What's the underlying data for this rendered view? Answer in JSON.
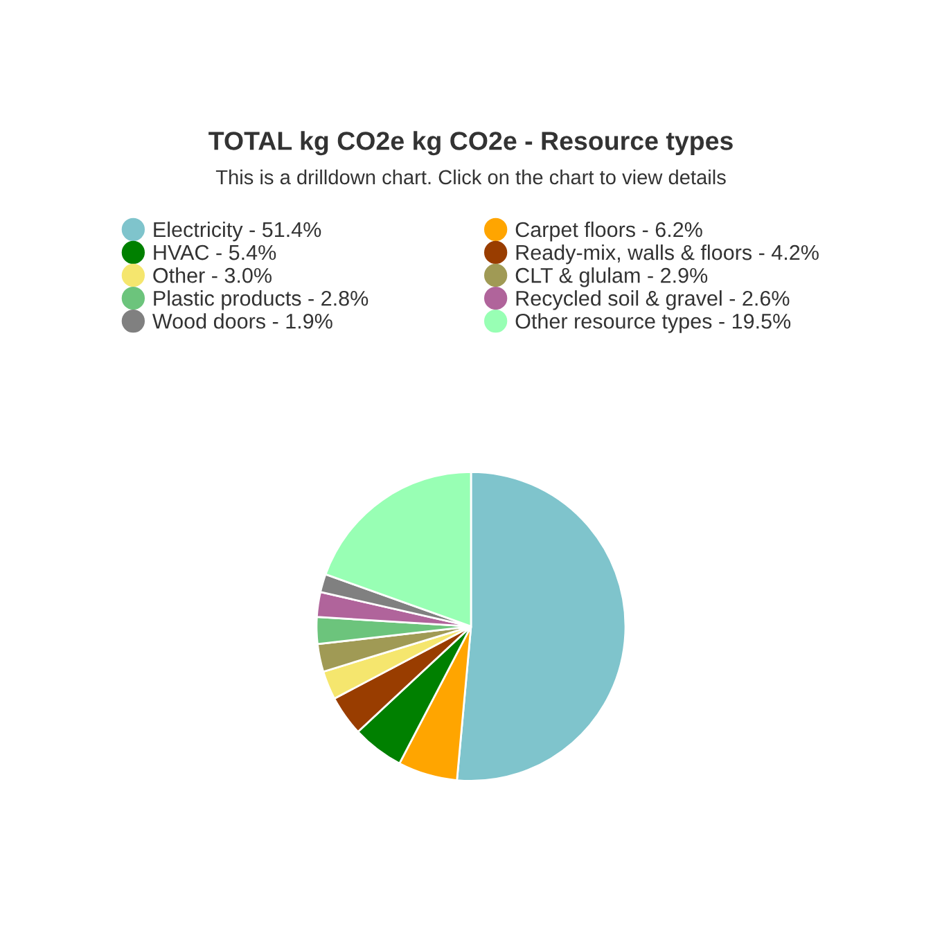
{
  "chart_data": {
    "type": "pie",
    "title": "TOTAL kg CO2e kg CO2e - Resource types",
    "subtitle": "This is a drilldown chart. Click on the chart to view details",
    "categories": [
      "Electricity - 51.4%",
      "Carpet floors - 6.2%",
      "HVAC - 5.4%",
      "Ready-mix, walls & floors - 4.2%",
      "Other - 3.0%",
      "CLT & glulam - 2.9%",
      "Plastic products - 2.8%",
      "Recycled soil & gravel - 2.6%",
      "Wood doors - 1.9%",
      "Other resource types - 19.5%"
    ],
    "values": [
      51.4,
      6.2,
      5.4,
      4.2,
      3.0,
      2.9,
      2.8,
      2.6,
      1.9,
      19.5
    ],
    "colors": [
      "#7fc4cc",
      "#ffa500",
      "#008000",
      "#993d00",
      "#f5e66e",
      "#a09a55",
      "#6cc47c",
      "#b0649b",
      "#808080",
      "#98ffb4"
    ],
    "legend": "top"
  }
}
